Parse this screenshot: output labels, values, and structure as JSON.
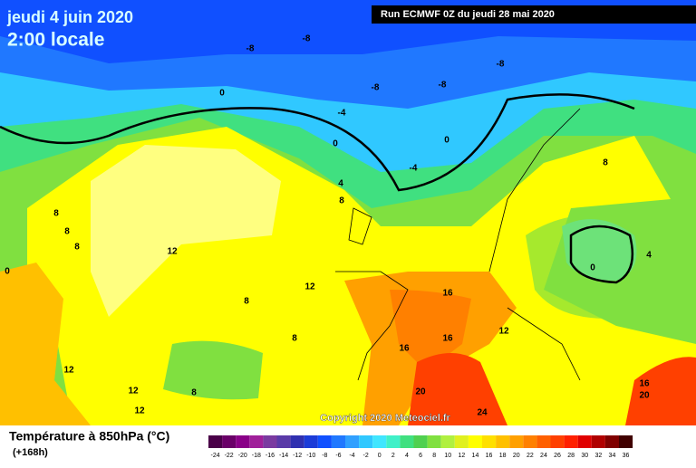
{
  "header": {
    "date": "jeudi 4 juin 2020",
    "time": "2:00 locale",
    "run": "Run ECMWF 0Z du jeudi 28 mai 2020"
  },
  "map": {
    "copyright": "Copyright 2020 Meteociel.fr",
    "contour_labels": [
      "-8",
      "-8",
      "-8",
      "-8",
      "-8",
      "0",
      "-4",
      "0",
      "0",
      "-4",
      "8",
      "4",
      "8",
      "8",
      "8",
      "8",
      "12",
      "0",
      "0",
      "4",
      "8",
      "12",
      "16",
      "12",
      "8",
      "16",
      "16",
      "12",
      "16",
      "20",
      "12",
      "8",
      "20",
      "12",
      "24"
    ]
  },
  "legend": {
    "title": "Température à 850hPa (°C)",
    "lead": "(+168h)",
    "ticks": [
      -24,
      -22,
      -20,
      -18,
      -16,
      -14,
      -12,
      -10,
      -8,
      -6,
      -4,
      -2,
      0,
      2,
      4,
      6,
      8,
      10,
      12,
      14,
      16,
      18,
      20,
      22,
      24,
      26,
      28,
      30,
      32,
      34,
      36
    ],
    "colors": [
      "#4a0048",
      "#6a0068",
      "#8a0088",
      "#a0209a",
      "#7a3aa0",
      "#5a3aa8",
      "#3030b0",
      "#1c3cd8",
      "#1050ff",
      "#2078ff",
      "#30a0ff",
      "#30c8ff",
      "#40e6ff",
      "#40f0c8",
      "#40e080",
      "#50d050",
      "#80e040",
      "#b0f040",
      "#e0f020",
      "#ffff00",
      "#ffe000",
      "#ffc000",
      "#ffa000",
      "#ff8000",
      "#ff6000",
      "#ff4000",
      "#ff2000",
      "#e00000",
      "#b00000",
      "#800000",
      "#400000"
    ]
  }
}
